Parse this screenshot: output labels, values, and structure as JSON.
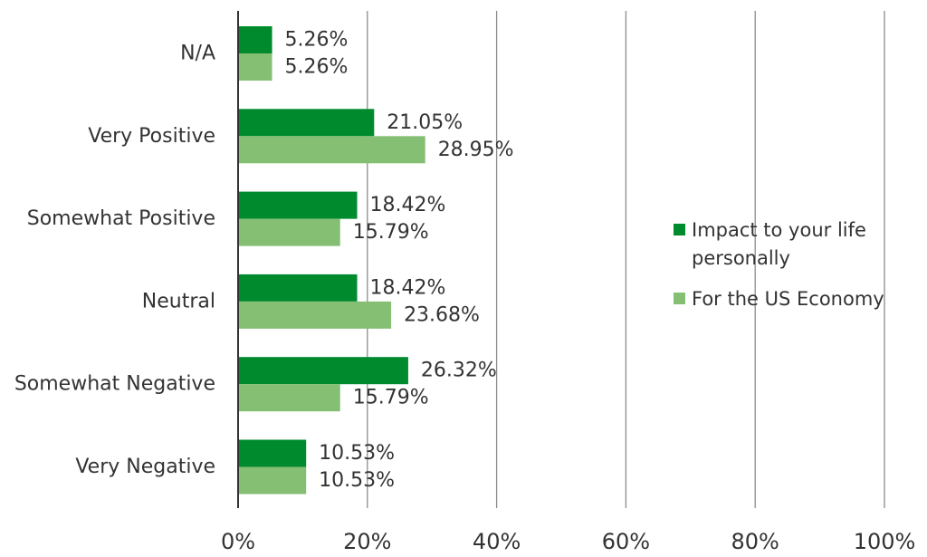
{
  "colors": {
    "series_personal": "#008a2e",
    "series_economy": "#85bf74",
    "gridline": "#8c8c8c",
    "axis": "#333333"
  },
  "chart_data": {
    "type": "bar",
    "orientation": "horizontal",
    "categories": [
      "N/A",
      "Very Positive",
      "Somewhat Positive",
      "Neutral",
      "Somewhat Negative",
      "Very Negative"
    ],
    "series": [
      {
        "name": "Impact to your life personally",
        "legend_lines": [
          "Impact to your life",
          "personally"
        ],
        "values": [
          5.26,
          21.05,
          18.42,
          18.42,
          26.32,
          10.53
        ]
      },
      {
        "name": "For the US Economy",
        "legend_lines": [
          "For the US Economy"
        ],
        "values": [
          5.26,
          28.95,
          15.79,
          23.68,
          15.79,
          10.53
        ]
      }
    ],
    "data_labels": [
      [
        "5.26%",
        "21.05%",
        "18.42%",
        "18.42%",
        "26.32%",
        "10.53%"
      ],
      [
        "5.26%",
        "28.95%",
        "15.79%",
        "23.68%",
        "15.79%",
        "10.53%"
      ]
    ],
    "xlim": [
      0,
      100
    ],
    "x_ticks": [
      "0%",
      "20%",
      "40%",
      "60%",
      "80%",
      "100%"
    ],
    "grid": "vertical",
    "legend_position": "right",
    "title": "",
    "xlabel": "",
    "ylabel": ""
  }
}
